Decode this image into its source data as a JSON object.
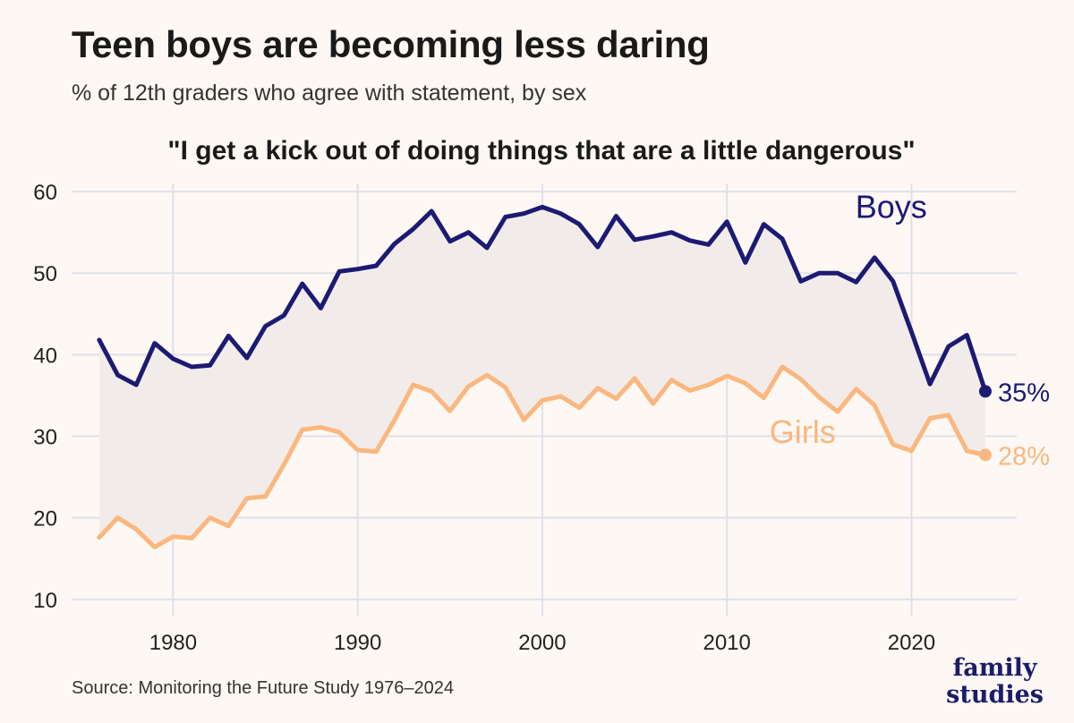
{
  "header": {
    "title": "Teen boys are becoming less daring",
    "subtitle": "% of 12th graders who agree with statement, by sex"
  },
  "footer": {
    "source": "Source: Monitoring the Future Study 1976–2024",
    "logo_line1": "family",
    "logo_line2": "studies"
  },
  "colors": {
    "background": "#fdf8f3",
    "boys": "#1c1a73",
    "girls": "#fbb77e",
    "gap_fill": "#f1ecea",
    "grid": "#dfe0ea"
  },
  "chart_data": {
    "type": "line",
    "title": "\"I get a kick out of doing things that are a little dangerous\"",
    "xlabel": "",
    "ylabel": "",
    "xlim": [
      1974.5,
      1976.0
    ],
    "ylim": [
      8,
      61
    ],
    "x_ticks": [
      1980,
      1990,
      2000,
      2010,
      2020
    ],
    "y_ticks": [
      10,
      20,
      30,
      40,
      50,
      60
    ],
    "grid": true,
    "shade_between_series": true,
    "x": [
      1976,
      1977,
      1978,
      1979,
      1980,
      1981,
      1982,
      1983,
      1984,
      1985,
      1986,
      1987,
      1988,
      1989,
      1990,
      1991,
      1992,
      1993,
      1994,
      1995,
      1996,
      1997,
      1998,
      1999,
      2000,
      2001,
      2002,
      2003,
      2004,
      2005,
      2006,
      2007,
      2008,
      2009,
      2010,
      2011,
      2012,
      2013,
      2014,
      2015,
      2016,
      2017,
      2018,
      2019,
      2020,
      2021,
      2022,
      2023,
      2024
    ],
    "series": [
      {
        "name": "Boys",
        "end_label": "35%",
        "color": "#1c1a73",
        "values": [
          41.8,
          37.5,
          36.3,
          41.4,
          39.5,
          38.5,
          38.7,
          42.3,
          39.6,
          43.5,
          44.8,
          48.7,
          45.7,
          50.2,
          50.5,
          50.9,
          53.6,
          55.4,
          57.6,
          53.9,
          55.0,
          53.1,
          56.9,
          57.3,
          58.1,
          57.3,
          56.0,
          53.2,
          57.0,
          54.1,
          54.5,
          55.0,
          54.0,
          53.5,
          56.3,
          51.3,
          56.0,
          54.2,
          49.0,
          50.0,
          50.0,
          48.9,
          51.9,
          49.0,
          42.8,
          36.4,
          41.0,
          42.4,
          35.5
        ]
      },
      {
        "name": "Girls",
        "end_label": "28%",
        "color": "#fbb77e",
        "values": [
          17.6,
          20.0,
          18.6,
          16.4,
          17.7,
          17.5,
          20.0,
          19.0,
          22.4,
          22.6,
          26.5,
          30.8,
          31.1,
          30.5,
          28.3,
          28.1,
          32.0,
          36.3,
          35.5,
          33.1,
          36.1,
          37.5,
          36.0,
          32.0,
          34.4,
          34.9,
          33.5,
          35.9,
          34.6,
          37.1,
          34.0,
          36.9,
          35.6,
          36.3,
          37.4,
          36.5,
          34.7,
          38.5,
          37.0,
          34.8,
          33.0,
          35.8,
          33.8,
          29.0,
          28.2,
          32.2,
          32.6,
          28.2,
          27.7
        ]
      }
    ]
  }
}
